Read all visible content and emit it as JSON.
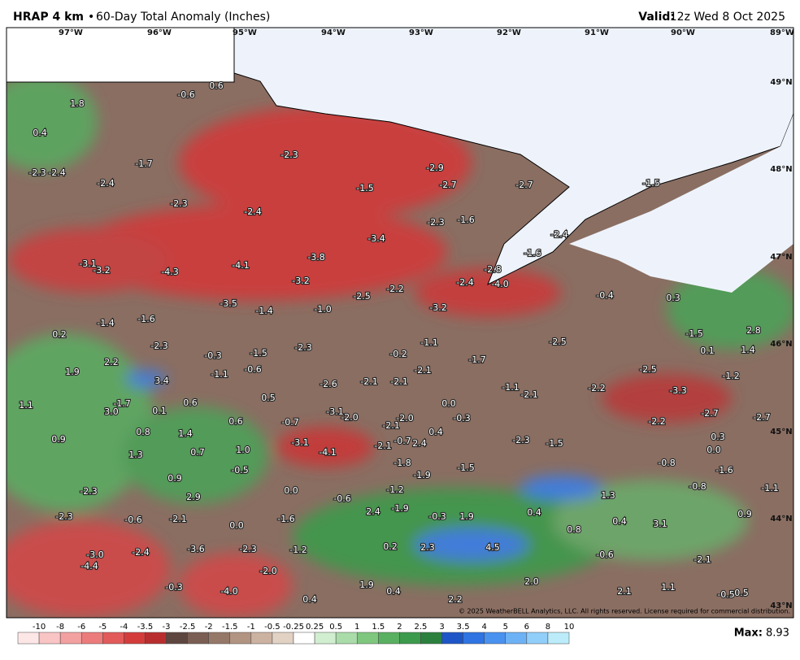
{
  "header": {
    "product": "HRAP 4 km",
    "separator": "•",
    "title": "60-Day Total Anomaly (Inches)",
    "valid_label": "Valid:",
    "valid_time": "12z Wed 8 Oct 2025"
  },
  "map": {
    "longitudes": [
      "97°W",
      "96°W",
      "95°W",
      "94°W",
      "93°W",
      "92°W",
      "91°W",
      "90°W",
      "89°W"
    ],
    "latitudes": [
      "49°N",
      "48°N",
      "47°N",
      "46°N",
      "45°N",
      "44°N",
      "43°N"
    ],
    "labels": [
      "0.6",
      "-0.6",
      "1.8",
      "0.4",
      "-2.3",
      "-2.3",
      "-2.4",
      "-1.7",
      "-2.9",
      "-2.4",
      "-1.5",
      "-2.7",
      "-2.7",
      "-1.5",
      "-2.3",
      "-2.4",
      "-2.3",
      "-1.6",
      "-2.4",
      "-3.4",
      "-1.6",
      "-3.8",
      "-3.1",
      "-3.2",
      "-4.3",
      "-4.1",
      "-2.8",
      "-3.2",
      "-2.2",
      "-2.4",
      "-4.0",
      "-2.5",
      "-0.4",
      "0.3",
      "-3.5",
      "-1.4",
      "-1.0",
      "-3.2",
      "-1.6",
      "-1.4",
      "0.2",
      "-1.1",
      "-2.5",
      "-1.5",
      "2.8",
      "-2.3",
      "-0.3",
      "-1.5",
      "-2.3",
      "-0.2",
      "0.1",
      "1.4",
      "2.2",
      "-1.7",
      "-0.6",
      "-1.1",
      "1.9",
      "3.4",
      "-2.6",
      "-2.1",
      "-2.1",
      "-2.1",
      "-2.5",
      "-1.2",
      "-1.1",
      "-2.1",
      "-2.2",
      "-3.3",
      "0.5",
      "0.6",
      "1.1",
      "-1.7",
      "0.0",
      "3.0",
      "0.1",
      "-3.1",
      "-2.0",
      "-2.7",
      "-2.7",
      "-0.3",
      "-0.7",
      "0.6",
      "-2.1",
      "-2.0",
      "-2.2",
      "0.4",
      "0.8",
      "1.4",
      "0.9",
      "-0.7",
      "2.4",
      "-3.1",
      "-2.1",
      "-2.3",
      "-1.5",
      "0.3",
      "0.0",
      "-4.1",
      "1.3",
      "0.7",
      "1.0",
      "-1.8",
      "-0.8",
      "-1.5",
      "-0.5",
      "-1.9",
      "-1.6",
      "0.9",
      "-2.3",
      "0.0",
      "-1.2",
      "-0.8",
      "-1.1",
      "-0.6",
      "2.9",
      "1.3",
      "-1.9",
      "2.4",
      "-2.3",
      "-0.6",
      "-2.1",
      "-1.6",
      "-0.3",
      "1.9",
      "0.4",
      "0.9",
      "0.4",
      "3.1",
      "0.0",
      "0.8",
      "0.2",
      "2.3",
      "4.5",
      "-2.4",
      "-3.6",
      "-2.3",
      "-1.2",
      "-3.0",
      "-0.6",
      "-2.1",
      "-4.4",
      "-2.0",
      "2.0",
      "-0.3",
      "-4.0",
      "1.9",
      "0.4",
      "2.1",
      "1.1",
      "-0.5",
      "0.5",
      "0.4",
      "2.2"
    ],
    "copyright": "© 2025 WeatherBELL Analytics, LLC. All rights reserved. License required for commercial distribution."
  },
  "legend": {
    "ticks": [
      "-10",
      "-8",
      "-6",
      "-5",
      "-4",
      "-3.5",
      "-3",
      "-2.5",
      "-2",
      "-1.5",
      "-1",
      "-0.5",
      "-0.25",
      "0.25",
      "0.5",
      "1",
      "1.5",
      "2",
      "2.5",
      "3",
      "3.5",
      "4",
      "5",
      "6",
      "8",
      "10"
    ],
    "colors": [
      "#fde6e6",
      "#f9c4c4",
      "#f3a0a0",
      "#ec7c7c",
      "#e25a5a",
      "#d43c3c",
      "#b82e2e",
      "#5e4640",
      "#7a5e54",
      "#967868",
      "#b29482",
      "#ccb2a0",
      "#e2d2c4",
      "#ffffff",
      "#d2eed0",
      "#aadcaa",
      "#7fc67f",
      "#58b060",
      "#3c9a4c",
      "#2c803e",
      "#1e56c8",
      "#2f74e2",
      "#4a92f0",
      "#6eb2f6",
      "#92cefa",
      "#bcecfa"
    ],
    "max_label": "Max:",
    "max_value": "8.93"
  }
}
